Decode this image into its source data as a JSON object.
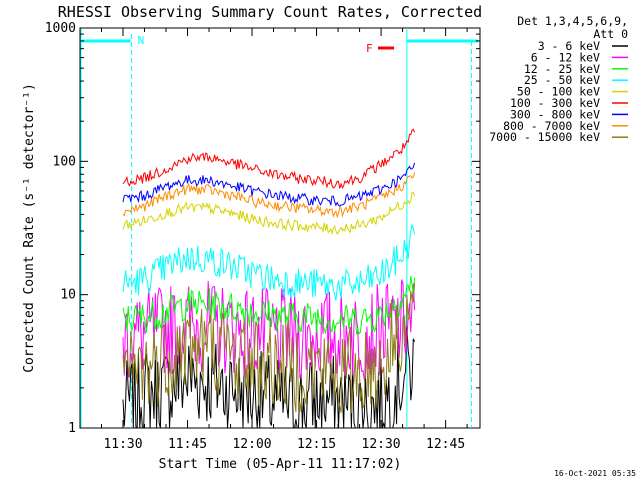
{
  "chart_data": {
    "type": "line",
    "title": "RHESSI Observing Summary Count Rates, Corrected",
    "xlabel": "Start Time (05-Apr-11 11:17:02)",
    "ylabel": "Corrected Count Rate (s⁻¹ detector⁻¹)",
    "y_scale": "log",
    "ylim": [
      1,
      1000
    ],
    "xlim": [
      "11:20",
      "12:53"
    ],
    "x_ticks": [
      "11:30",
      "11:45",
      "12:00",
      "12:15",
      "12:30",
      "12:45"
    ],
    "y_ticks": [
      "1",
      "10",
      "100",
      "1000"
    ],
    "grid": false,
    "legend_header": [
      "Det 1,3,4,5,6,9,",
      "Att 0"
    ],
    "legend_position": "right",
    "timestamp": "16-Oct-2021 05:35",
    "x": [
      "11:20",
      "11:25",
      "11:30",
      "11:35",
      "11:40",
      "11:45",
      "11:50",
      "11:55",
      "12:00",
      "12:05",
      "12:10",
      "12:15",
      "12:20",
      "12:25",
      "12:30",
      "12:35",
      "12:38"
    ],
    "series": [
      {
        "name": "3 - 6 keV",
        "color": "#000000",
        "values": [
          null,
          null,
          1.4,
          1.8,
          2.0,
          2.4,
          2.2,
          2.0,
          1.8,
          1.6,
          1.5,
          1.6,
          1.6,
          1.4,
          1.5,
          2.5,
          3.0
        ]
      },
      {
        "name": "6 - 12 keV",
        "color": "#ff00ff",
        "values": [
          null,
          null,
          4.8,
          5.0,
          5.5,
          5.8,
          5.8,
          5.5,
          5.2,
          5.0,
          5.0,
          5.0,
          5.0,
          5.0,
          5.5,
          6.0,
          6.5
        ]
      },
      {
        "name": "12 - 25 keV",
        "color": "#00ff00",
        "values": [
          null,
          null,
          6.5,
          6.8,
          7.5,
          8.5,
          8.5,
          8.0,
          7.5,
          7.0,
          6.8,
          6.8,
          6.5,
          6.5,
          7.0,
          9.5,
          13.0
        ]
      },
      {
        "name": "25 - 50 keV",
        "color": "#00ffff",
        "values": [
          null,
          null,
          12,
          13,
          16,
          19,
          18.5,
          16.5,
          14.5,
          13,
          12.3,
          12,
          11.5,
          12,
          14,
          20,
          30
        ]
      },
      {
        "name": "50 - 100 keV",
        "color": "#d4d400",
        "values": [
          null,
          null,
          33,
          36,
          41,
          45,
          44.5,
          41,
          37,
          34.5,
          33,
          32,
          31,
          33,
          38,
          48,
          58
        ]
      },
      {
        "name": "100 - 300 keV",
        "color": "#ff0000",
        "values": [
          null,
          null,
          70,
          75,
          88,
          105,
          108,
          98,
          88,
          80,
          75,
          72,
          68,
          75,
          95,
          125,
          170
        ]
      },
      {
        "name": "300 - 800 keV",
        "color": "#0000ff",
        "values": [
          null,
          null,
          52,
          55,
          65,
          72,
          72,
          66,
          60,
          56,
          53,
          51,
          50,
          54,
          62,
          75,
          95
        ]
      },
      {
        "name": "800 - 7000 keV",
        "color": "#ff8c00",
        "values": [
          null,
          null,
          42,
          46,
          55,
          62,
          61,
          56,
          50,
          47,
          45,
          43,
          42,
          46,
          53,
          66,
          82
        ]
      },
      {
        "name": "7000 - 15000 keV",
        "color": "#8b7d1a",
        "values": [
          null,
          null,
          2.5,
          2.8,
          3.5,
          4.2,
          4.0,
          3.6,
          3.2,
          3.0,
          2.9,
          2.8,
          2.5,
          2.7,
          3.0,
          6.0,
          8.0
        ]
      }
    ],
    "annotations": [
      {
        "label": "N",
        "color": "#00ffff",
        "type": "night"
      },
      {
        "label": "F",
        "color": "#ff0000",
        "type": "flare"
      }
    ]
  }
}
